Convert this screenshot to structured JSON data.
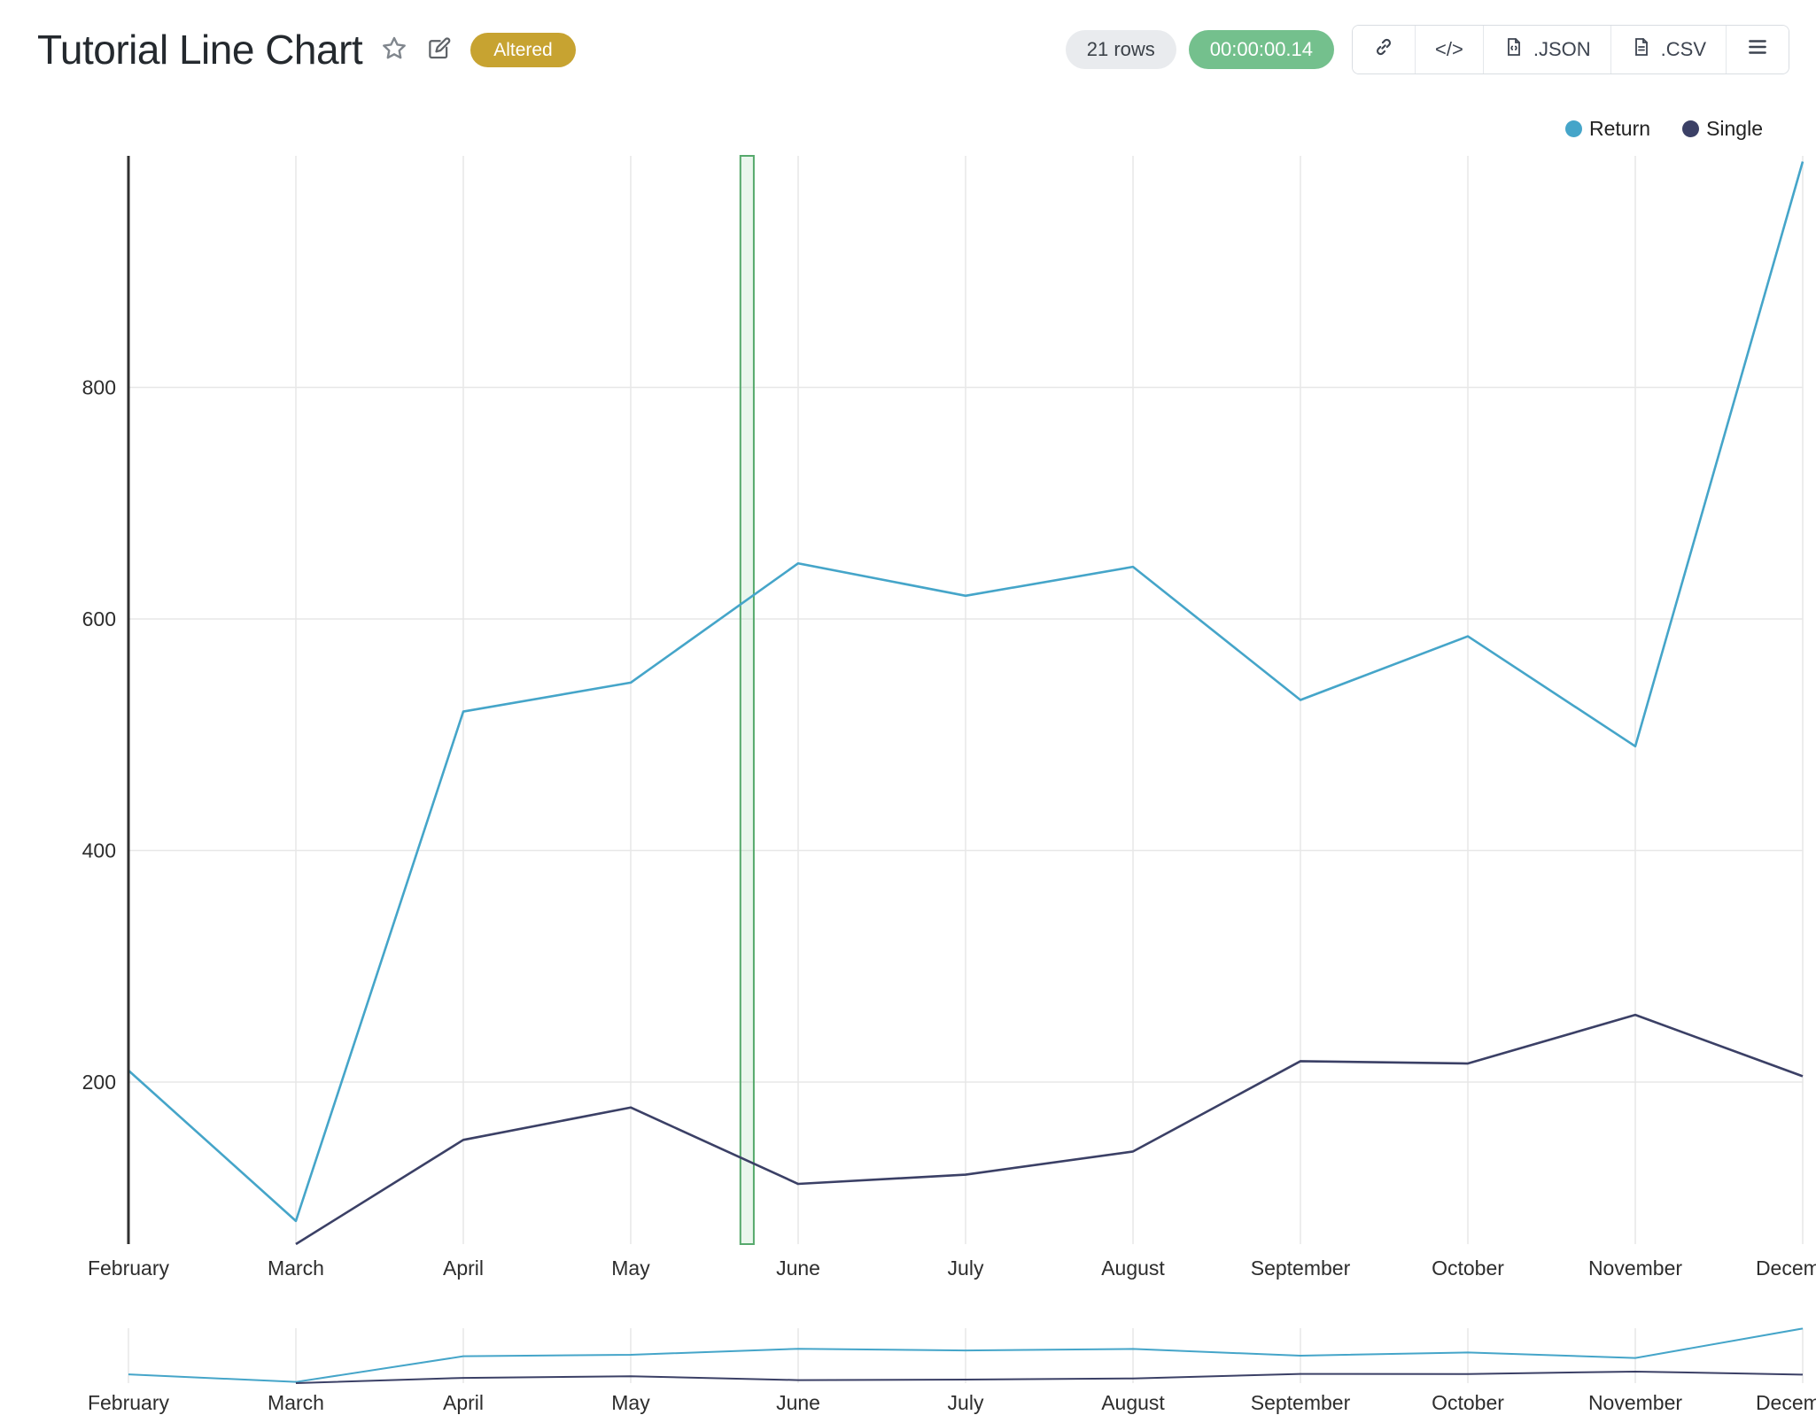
{
  "header": {
    "title": "Tutorial Line Chart",
    "altered_badge": "Altered",
    "rows_count": "21 rows",
    "elapsed_time": "00:00:00.14",
    "buttons": {
      "link_icon": "link",
      "embed_icon": "</>",
      "json_label": ".JSON",
      "csv_label": ".CSV",
      "menu_icon": "menu"
    },
    "colors": {
      "altered_badge_bg": "#c7a331",
      "rows_pill_bg": "#e9ebee",
      "time_pill_bg": "#74c08d"
    }
  },
  "legend": {
    "items": [
      {
        "label": "Return",
        "color": "#45a5c9"
      },
      {
        "label": "Single",
        "color": "#3b4066"
      }
    ]
  },
  "chart_data": {
    "type": "line",
    "title": "Tutorial Line Chart",
    "categories": [
      "February",
      "March",
      "April",
      "May",
      "June",
      "July",
      "August",
      "September",
      "October",
      "November",
      "December"
    ],
    "series": [
      {
        "name": "Return",
        "color": "#45a5c9",
        "values": [
          210,
          80,
          520,
          545,
          648,
          620,
          645,
          530,
          585,
          490,
          995
        ]
      },
      {
        "name": "Single",
        "color": "#3b4066",
        "values": [
          null,
          60,
          150,
          178,
          112,
          120,
          140,
          218,
          216,
          258,
          205
        ]
      }
    ],
    "xlabel": "",
    "ylabel": "",
    "yticks": [
      200,
      400,
      600,
      800
    ],
    "ylim": [
      60,
      1000
    ],
    "grid": true,
    "legend_position": "top-right",
    "selection_band": {
      "from_index": 3.655,
      "to_index": 3.735,
      "stroke": "#56a96c",
      "fill": "rgba(126,200,146,0.16)"
    },
    "grid_color": "#e7e7e7",
    "axis_color": "#303030",
    "tick_label_color": "#2d2d2d",
    "range_selector": {
      "visible": true,
      "shows_same_categories": true
    }
  }
}
